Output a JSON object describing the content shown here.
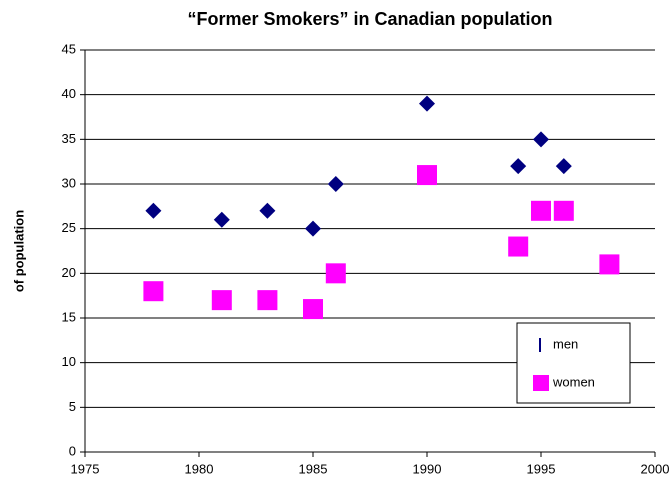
{
  "chart_data": {
    "type": "scatter",
    "title": "“Former Smokers” in Canadian population",
    "ylabel": "of population",
    "xlim": [
      1975,
      2000
    ],
    "xticks": [
      1975,
      1980,
      1985,
      1990,
      1995,
      2000
    ],
    "ylim": [
      0,
      45
    ],
    "yticks": [
      0,
      5,
      10,
      15,
      20,
      25,
      30,
      35,
      40,
      45
    ],
    "grid": true,
    "legend": "lower right",
    "series": [
      {
        "name": "men",
        "color": "#000080",
        "marker": "diamond",
        "x": [
          1978,
          1981,
          1983,
          1985,
          1986,
          1990,
          1994,
          1995,
          1996
        ],
        "values": [
          27,
          26,
          27,
          25,
          30,
          39,
          32,
          35,
          32
        ]
      },
      {
        "name": "women",
        "color": "#ff00ff",
        "marker": "square",
        "x": [
          1978,
          1981,
          1983,
          1985,
          1986,
          1990,
          1994,
          1995,
          1996,
          1998
        ],
        "values": [
          18,
          17,
          17,
          16,
          20,
          31,
          23,
          27,
          27,
          21
        ]
      }
    ]
  }
}
